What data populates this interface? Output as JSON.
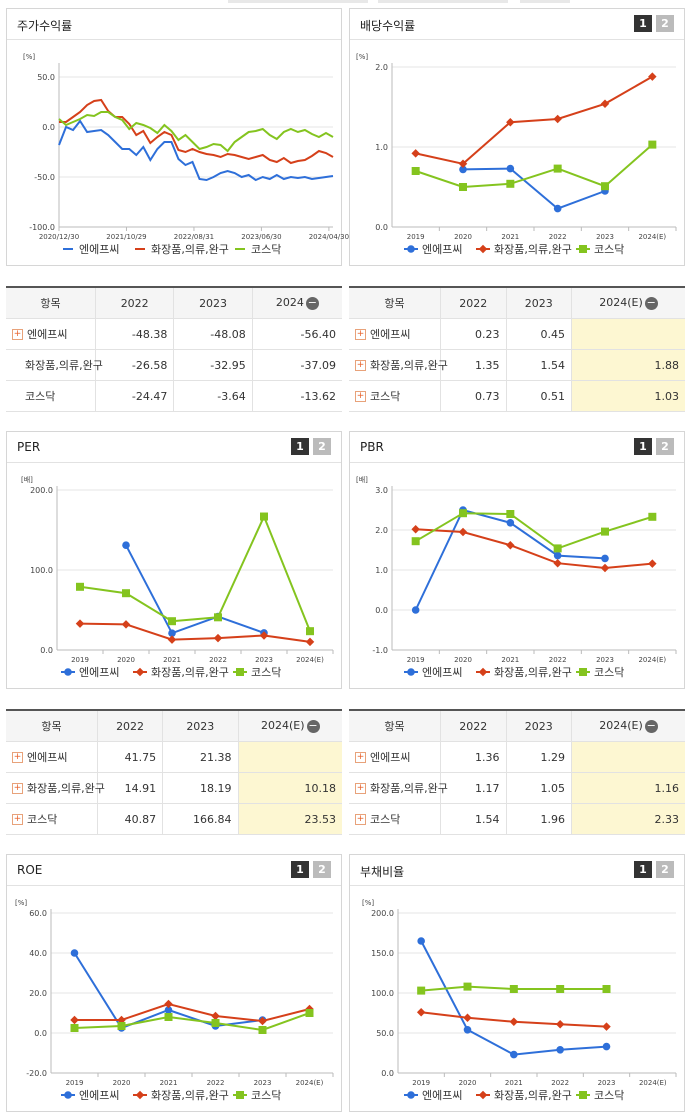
{
  "colors": {
    "s1": "#2e6fd9",
    "s2": "#d5401a",
    "s3": "#84c41f"
  },
  "legend": [
    "엔에프씨",
    "화장품,의류,완구",
    "코스닥"
  ],
  "tabs": [
    "1",
    "2"
  ],
  "stock": {
    "title": "주가수익률",
    "chart_data": {
      "type": "line",
      "title": "주가수익률",
      "unit": "[%]",
      "x_ticks": [
        "2020/12/30",
        "2021/10/29",
        "2022/08/31",
        "2023/06/30",
        "2024/04/30"
      ],
      "y_ticks": [
        "50.0",
        "0.0",
        "-50.0",
        "-100.0"
      ],
      "ylim": [
        -100,
        60
      ],
      "series": [
        {
          "name": "엔에프씨",
          "values": [
            -18,
            0,
            -3,
            6,
            -5,
            -4,
            -3,
            -8,
            -15,
            -22,
            -22,
            -28,
            -20,
            -33,
            -22,
            -15,
            -15,
            -32,
            -38,
            -35,
            -52,
            -53,
            -50,
            -46,
            -44,
            -46,
            -50,
            -48,
            -53,
            -50,
            -52,
            -48,
            -52,
            -50,
            -51,
            -50,
            -52,
            -51,
            -50,
            -49
          ]
        },
        {
          "name": "화장품,의류,완구",
          "values": [
            5,
            5,
            10,
            15,
            22,
            26,
            27,
            16,
            10,
            10,
            3,
            -8,
            -4,
            -16,
            -10,
            -5,
            -8,
            -23,
            -25,
            -22,
            -25,
            -27,
            -28,
            -30,
            -27,
            -28,
            -30,
            -32,
            -30,
            -28,
            -33,
            -35,
            -31,
            -36,
            -34,
            -33,
            -29,
            -24,
            -26,
            -30
          ]
        },
        {
          "name": "코스닥",
          "values": [
            8,
            2,
            5,
            8,
            12,
            11,
            15,
            15,
            10,
            7,
            -2,
            4,
            2,
            -1,
            -6,
            2,
            -4,
            -13,
            -8,
            -15,
            -22,
            -20,
            -17,
            -18,
            -24,
            -15,
            -10,
            -5,
            -4,
            -2,
            -8,
            -12,
            -5,
            -2,
            -5,
            -3,
            -7,
            -10,
            -6,
            -10
          ]
        }
      ]
    }
  },
  "dividend": {
    "title": "배당수익률",
    "chart_data": {
      "type": "line",
      "title": "배당수익률",
      "unit": "[%]",
      "categories": [
        "2019",
        "2020",
        "2021",
        "2022",
        "2023",
        "2024(E)"
      ],
      "y_ticks": [
        "2.0",
        "1.0",
        "0.0"
      ],
      "ylim": [
        0,
        2
      ],
      "series": [
        {
          "name": "엔에프씨",
          "values": [
            null,
            0.72,
            0.73,
            0.23,
            0.45,
            null
          ]
        },
        {
          "name": "화장품,의류,완구",
          "values": [
            0.92,
            0.79,
            1.31,
            1.35,
            1.54,
            1.88
          ]
        },
        {
          "name": "코스닥",
          "values": [
            0.7,
            0.5,
            0.54,
            0.73,
            0.51,
            1.03
          ]
        }
      ]
    }
  },
  "stock_table": {
    "headers": [
      "항목",
      "2022",
      "2023",
      "2024"
    ],
    "rows": [
      {
        "name": "엔에프씨",
        "plus": true,
        "v": [
          "-48.38",
          "-48.08",
          "-56.40"
        ]
      },
      {
        "name": "화장품,의류,완구",
        "plus": false,
        "v": [
          "-26.58",
          "-32.95",
          "-37.09"
        ]
      },
      {
        "name": "코스닥",
        "plus": false,
        "v": [
          "-24.47",
          "-3.64",
          "-13.62"
        ]
      }
    ]
  },
  "dividend_table": {
    "headers": [
      "항목",
      "2022",
      "2023",
      "2024(E)"
    ],
    "rows": [
      {
        "name": "엔에프씨",
        "plus": true,
        "v": [
          "0.23",
          "0.45",
          ""
        ]
      },
      {
        "name": "화장품,의류,완구",
        "plus": true,
        "v": [
          "1.35",
          "1.54",
          "1.88"
        ]
      },
      {
        "name": "코스닥",
        "plus": true,
        "v": [
          "0.73",
          "0.51",
          "1.03"
        ]
      }
    ]
  },
  "per": {
    "title": "PER",
    "chart_data": {
      "type": "line",
      "title": "PER",
      "unit": "[배]",
      "categories": [
        "2019",
        "2020",
        "2021",
        "2022",
        "2023",
        "2024(E)"
      ],
      "y_ticks": [
        "200.0",
        "100.0",
        "0.0"
      ],
      "ylim": [
        0,
        200
      ],
      "series": [
        {
          "name": "엔에프씨",
          "values": [
            null,
            131,
            21,
            41.75,
            21.38,
            null
          ]
        },
        {
          "name": "화장품,의류,완구",
          "values": [
            33,
            32,
            13,
            14.91,
            18.19,
            10.18
          ]
        },
        {
          "name": "코스닥",
          "values": [
            79,
            71,
            36,
            40.87,
            166.84,
            23.53
          ]
        }
      ]
    }
  },
  "pbr": {
    "title": "PBR",
    "chart_data": {
      "type": "line",
      "title": "PBR",
      "unit": "[배]",
      "categories": [
        "2019",
        "2020",
        "2021",
        "2022",
        "2023",
        "2024(E)"
      ],
      "y_ticks": [
        "3.0",
        "2.0",
        "1.0",
        "0.0",
        "-1.0"
      ],
      "ylim": [
        -1,
        3
      ],
      "series": [
        {
          "name": "엔에프씨",
          "values": [
            0.0,
            2.5,
            2.18,
            1.36,
            1.29,
            null
          ]
        },
        {
          "name": "화장품,의류,완구",
          "values": [
            2.02,
            1.95,
            1.62,
            1.17,
            1.05,
            1.16
          ]
        },
        {
          "name": "코스닥",
          "values": [
            1.72,
            2.42,
            2.4,
            1.54,
            1.96,
            2.33
          ]
        }
      ]
    }
  },
  "per_table": {
    "headers": [
      "항목",
      "2022",
      "2023",
      "2024(E)"
    ],
    "rows": [
      {
        "name": "엔에프씨",
        "plus": true,
        "v": [
          "41.75",
          "21.38",
          ""
        ]
      },
      {
        "name": "화장품,의류,완구",
        "plus": true,
        "v": [
          "14.91",
          "18.19",
          "10.18"
        ]
      },
      {
        "name": "코스닥",
        "plus": true,
        "v": [
          "40.87",
          "166.84",
          "23.53"
        ]
      }
    ]
  },
  "pbr_table": {
    "headers": [
      "항목",
      "2022",
      "2023",
      "2024(E)"
    ],
    "rows": [
      {
        "name": "엔에프씨",
        "plus": true,
        "v": [
          "1.36",
          "1.29",
          ""
        ]
      },
      {
        "name": "화장품,의류,완구",
        "plus": true,
        "v": [
          "1.17",
          "1.05",
          "1.16"
        ]
      },
      {
        "name": "코스닥",
        "plus": true,
        "v": [
          "1.54",
          "1.96",
          "2.33"
        ]
      }
    ]
  },
  "roe": {
    "title": "ROE",
    "chart_data": {
      "type": "line",
      "title": "ROE",
      "unit": "[%]",
      "categories": [
        "2019",
        "2020",
        "2021",
        "2022",
        "2023",
        "2024(E)"
      ],
      "y_ticks": [
        "60.0",
        "40.0",
        "20.0",
        "0.0",
        "-20.0"
      ],
      "ylim": [
        -20,
        60
      ],
      "series": [
        {
          "name": "엔에프씨",
          "values": [
            40,
            2.5,
            11.5,
            3.5,
            6.5,
            null
          ]
        },
        {
          "name": "화장품,의류,완구",
          "values": [
            6.5,
            6.5,
            14.5,
            8.5,
            6,
            12
          ]
        },
        {
          "name": "코스닥",
          "values": [
            2.5,
            3.5,
            8,
            5,
            1.5,
            10
          ]
        }
      ]
    }
  },
  "debt": {
    "title": "부채비율",
    "chart_data": {
      "type": "line",
      "title": "부채비율",
      "unit": "[%]",
      "categories": [
        "2019",
        "2020",
        "2021",
        "2022",
        "2023",
        "2024(E)"
      ],
      "y_ticks": [
        "200.0",
        "150.0",
        "100.0",
        "50.0",
        "0.0"
      ],
      "ylim": [
        0,
        200
      ],
      "series": [
        {
          "name": "엔에프씨",
          "values": [
            165,
            54,
            23,
            29,
            33,
            null
          ]
        },
        {
          "name": "화장품,의류,완구",
          "values": [
            76,
            69,
            64,
            61,
            58,
            null
          ]
        },
        {
          "name": "코스닥",
          "values": [
            103,
            108,
            105,
            105,
            105,
            null
          ]
        }
      ]
    }
  }
}
